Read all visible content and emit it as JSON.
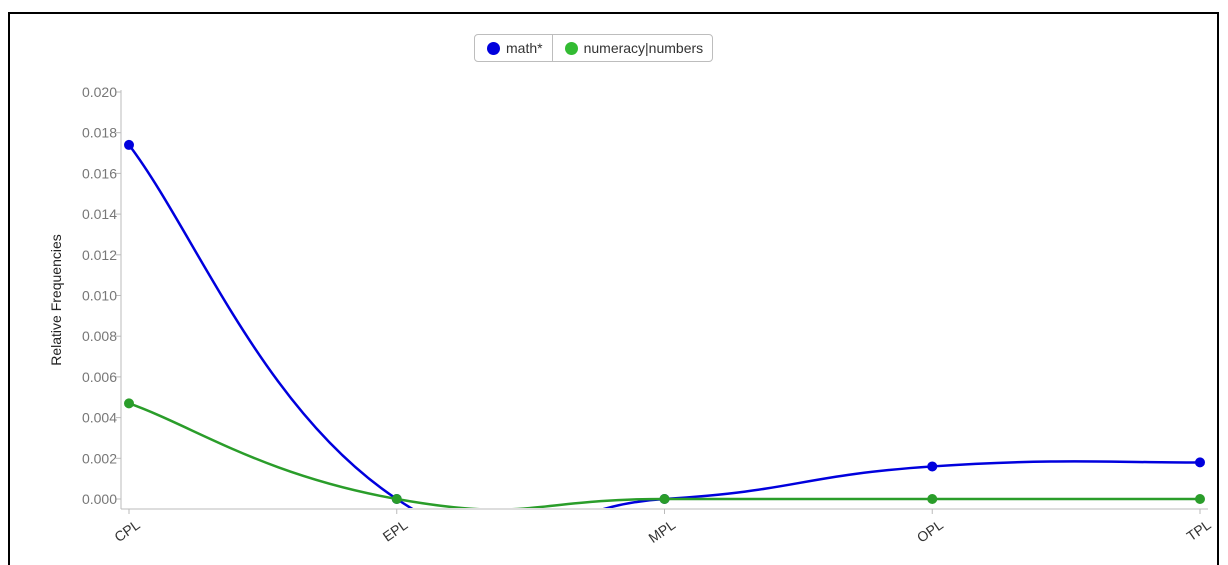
{
  "chart_data": {
    "type": "line",
    "title": "",
    "xlabel": "",
    "ylabel": "Relative Frequencies",
    "categories": [
      "CPL",
      "EPL",
      "MPL",
      "OPL",
      "TPL"
    ],
    "yticks": [
      "0.000",
      "0.002",
      "0.004",
      "0.006",
      "0.008",
      "0.010",
      "0.012",
      "0.014",
      "0.016",
      "0.018",
      "0.020"
    ],
    "ylim": [
      0,
      0.02
    ],
    "grid": false,
    "legend_position": "top-center",
    "series": [
      {
        "name": "math*",
        "color": "#0000dd",
        "values": [
          0.0174,
          0.0,
          0.0,
          0.0016,
          0.0018
        ]
      },
      {
        "name": "numeracy|numbers",
        "color": "#2a9d2a",
        "values": [
          0.0047,
          0.0,
          0.0,
          0.0,
          0.0
        ]
      }
    ]
  }
}
